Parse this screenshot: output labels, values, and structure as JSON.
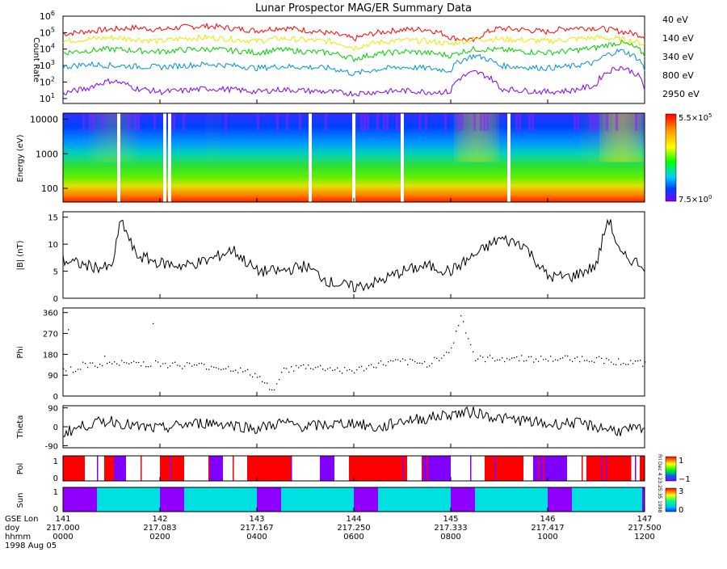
{
  "title": "Lunar Prospector MAG/ER Summary Data",
  "colors": {
    "ch40": "#ff0000",
    "ch140": "#e8e800",
    "ch340": "#00d000",
    "ch800": "#0090e0",
    "ch2950": "#8000ff",
    "pol_plus": "#ff0000",
    "pol_minus": "#8000ff",
    "sun_on": "#00e0e0",
    "sun_off": "#9000ff",
    "trace": "#000000"
  },
  "time_axis": {
    "rows": [
      {
        "label": "GSE Lon",
        "ticks": [
          "141",
          "142",
          "143",
          "144",
          "145",
          "146",
          "147"
        ]
      },
      {
        "label": "doy",
        "ticks": [
          "217.000",
          "217.083",
          "217.167",
          "217.250",
          "217.333",
          "217.417",
          "217.500"
        ]
      },
      {
        "label": "hhmm",
        "ticks": [
          "0000",
          "0200",
          "0400",
          "0600",
          "0800",
          "1000",
          "1200"
        ]
      }
    ],
    "date": "1998 Aug 05",
    "range_hours": [
      0,
      12
    ]
  },
  "chart_data": [
    {
      "type": "line",
      "id": "count_rate",
      "ylabel": "Count Rate",
      "yscale": "log",
      "ylim": [
        5,
        1000000
      ],
      "yticks": [
        {
          "base": "10",
          "exp": "1"
        },
        {
          "base": "10",
          "exp": "2"
        },
        {
          "base": "10",
          "exp": "3"
        },
        {
          "base": "10",
          "exp": "4"
        },
        {
          "base": "10",
          "exp": "5"
        },
        {
          "base": "10",
          "exp": "6"
        }
      ],
      "x": [
        0,
        0.5,
        1,
        1.5,
        2,
        2.5,
        3,
        3.5,
        4,
        4.5,
        5,
        5.5,
        6,
        6.5,
        7,
        7.5,
        8,
        8.5,
        9,
        9.5,
        10,
        10.5,
        11,
        11.5,
        12
      ],
      "series": [
        {
          "name": "40 eV",
          "values": [
            80000,
            120000,
            160000,
            200000,
            150000,
            220000,
            250000,
            180000,
            130000,
            200000,
            140000,
            90000,
            40000,
            100000,
            150000,
            160000,
            50000,
            30000,
            180000,
            150000,
            110000,
            200000,
            190000,
            120000,
            60000
          ]
        },
        {
          "name": "140 eV",
          "values": [
            30000,
            40000,
            50000,
            40000,
            30000,
            45000,
            50000,
            40000,
            30000,
            45000,
            35000,
            30000,
            12000,
            25000,
            35000,
            30000,
            20000,
            40000,
            40000,
            35000,
            30000,
            40000,
            50000,
            40000,
            20000
          ]
        },
        {
          "name": "340 eV",
          "values": [
            6000,
            8000,
            10000,
            8000,
            7000,
            9000,
            10000,
            8000,
            6000,
            9000,
            7000,
            6000,
            2500,
            5000,
            7000,
            6000,
            4000,
            10000,
            9000,
            7000,
            6000,
            8000,
            12000,
            25000,
            4000
          ]
        },
        {
          "name": "800 eV",
          "values": [
            800,
            1200,
            1000,
            900,
            800,
            1000,
            1200,
            1000,
            700,
            900,
            800,
            700,
            300,
            600,
            800,
            700,
            500,
            4000,
            1000,
            800,
            700,
            900,
            1500,
            8000,
            500
          ]
        },
        {
          "name": "2950 eV",
          "values": [
            20,
            40,
            120,
            40,
            25,
            30,
            40,
            35,
            25,
            35,
            30,
            25,
            20,
            25,
            30,
            25,
            25,
            400,
            40,
            30,
            25,
            30,
            60,
            800,
            30
          ]
        }
      ]
    },
    {
      "type": "heatmap",
      "id": "energy_spectrogram",
      "ylabel": "Energy (eV)",
      "yscale": "log",
      "ylim": [
        40,
        15000
      ],
      "yticks": [
        "100",
        "1000",
        "10000"
      ],
      "colorbar": {
        "max_base": "5.5",
        "max_exp": "5",
        "min_base": "7.5",
        "min_exp": "0",
        "sep": "×10"
      },
      "gaps_hours": [
        1.15,
        2.1,
        2.2,
        5.1,
        6.0,
        7.0,
        9.2
      ]
    },
    {
      "type": "line",
      "id": "b_magnitude",
      "ylabel": "|B| (nT)",
      "ylim": [
        0,
        16
      ],
      "yticks": [
        "0",
        "5",
        "10",
        "15"
      ],
      "x": [
        0,
        0.5,
        1,
        1.2,
        1.5,
        2,
        2.5,
        3,
        3.5,
        4,
        4.5,
        5,
        5.5,
        6,
        6.5,
        7,
        7.5,
        8,
        8.5,
        9,
        9.5,
        10,
        10.5,
        11,
        11.25,
        11.5,
        12
      ],
      "values": [
        7,
        6,
        5.5,
        14.5,
        8,
        6.5,
        6,
        7,
        9,
        5,
        5,
        6,
        3,
        2,
        3,
        5,
        6,
        5,
        8,
        11,
        10,
        4,
        4,
        6,
        15,
        8,
        6
      ]
    },
    {
      "type": "scatter",
      "id": "phi",
      "ylabel": "Phi",
      "ylim": [
        0,
        380
      ],
      "yticks": [
        "0",
        "90",
        "180",
        "270",
        "360"
      ],
      "x": [
        0,
        0.5,
        1,
        1.5,
        2,
        2.5,
        3,
        3.5,
        4,
        4.3,
        4.5,
        5,
        5.5,
        6,
        6.5,
        7,
        7.5,
        8,
        8.2,
        8.5,
        9,
        9.5,
        10,
        10.5,
        11,
        11.5,
        12
      ],
      "values": [
        110,
        130,
        140,
        145,
        140,
        135,
        130,
        120,
        90,
        20,
        110,
        130,
        120,
        110,
        140,
        150,
        140,
        200,
        350,
        160,
        165,
        165,
        160,
        165,
        160,
        150,
        140
      ]
    },
    {
      "type": "line",
      "id": "theta",
      "ylabel": "Theta",
      "ylim": [
        -100,
        100
      ],
      "yticks": [
        "-90",
        "0",
        "90"
      ],
      "x": [
        0,
        0.5,
        1,
        1.5,
        2,
        2.5,
        3,
        3.5,
        4,
        4.5,
        5,
        5.5,
        6,
        6.5,
        7,
        7.5,
        8,
        8.5,
        9,
        9.5,
        10,
        10.5,
        11,
        11.5,
        12
      ],
      "values": [
        -30,
        10,
        30,
        0,
        -10,
        10,
        20,
        10,
        -10,
        20,
        0,
        10,
        20,
        -10,
        30,
        40,
        60,
        70,
        40,
        30,
        10,
        20,
        0,
        -20,
        -10
      ]
    },
    {
      "type": "table",
      "id": "polarity",
      "ylabel": "Pol",
      "yticks": [
        "0",
        "1"
      ],
      "colorbar_ticks": [
        "1",
        "−1"
      ],
      "stamp": "Fri Dec 4 23:25:35 1998",
      "intervals": [
        {
          "from": 0.0,
          "to": 0.45,
          "v": 1
        },
        {
          "from": 0.85,
          "to": 1.05,
          "v": 1
        },
        {
          "from": 1.05,
          "to": 1.3,
          "v": -1
        },
        {
          "from": 2.0,
          "to": 2.5,
          "v": 1
        },
        {
          "from": 3.0,
          "to": 3.3,
          "v": -1
        },
        {
          "from": 3.8,
          "to": 4.7,
          "v": 1
        },
        {
          "from": 5.3,
          "to": 5.6,
          "v": -1
        },
        {
          "from": 5.9,
          "to": 7.1,
          "v": 1
        },
        {
          "from": 7.4,
          "to": 8.0,
          "v": -1
        },
        {
          "from": 8.7,
          "to": 9.5,
          "v": 1
        },
        {
          "from": 9.7,
          "to": 10.4,
          "v": -1
        },
        {
          "from": 10.8,
          "to": 11.7,
          "v": 1
        },
        {
          "from": 11.9,
          "to": 12.0,
          "v": 1
        }
      ]
    },
    {
      "type": "table",
      "id": "sun",
      "ylabel": "Sun",
      "yticks": [
        "0",
        "1"
      ],
      "colorbar_ticks": [
        "0",
        "3"
      ],
      "intervals": [
        {
          "from": 0.0,
          "to": 0.7,
          "v": 0
        },
        {
          "from": 0.7,
          "to": 2.0,
          "v": 1
        },
        {
          "from": 2.0,
          "to": 2.5,
          "v": 0
        },
        {
          "from": 2.5,
          "to": 4.0,
          "v": 1
        },
        {
          "from": 4.0,
          "to": 4.5,
          "v": 0
        },
        {
          "from": 4.5,
          "to": 6.0,
          "v": 1
        },
        {
          "from": 6.0,
          "to": 6.5,
          "v": 0
        },
        {
          "from": 6.5,
          "to": 8.0,
          "v": 1
        },
        {
          "from": 8.0,
          "to": 8.5,
          "v": 0
        },
        {
          "from": 8.5,
          "to": 10.0,
          "v": 1
        },
        {
          "from": 10.0,
          "to": 10.5,
          "v": 0
        },
        {
          "from": 10.5,
          "to": 11.95,
          "v": 1
        },
        {
          "from": 11.95,
          "to": 12.0,
          "v": 0
        }
      ]
    }
  ]
}
